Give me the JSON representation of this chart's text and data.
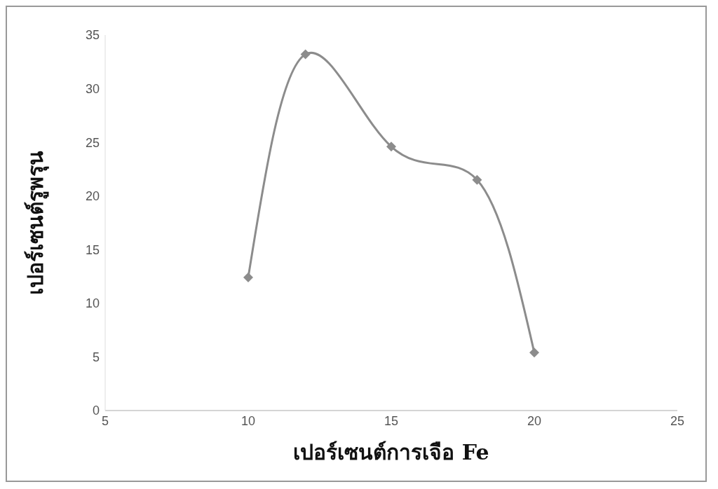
{
  "chart_data": {
    "type": "line",
    "xlabel": "เปอร์เซนต์การเจือ Fe",
    "ylabel": "เปอร์เซนต์รูพรุน",
    "x": [
      10,
      12,
      15,
      18,
      20
    ],
    "series": [
      {
        "color": "#8c8c8c",
        "values": [
          12.4,
          33.2,
          24.6,
          21.5,
          5.4
        ]
      }
    ],
    "xlim": [
      5,
      25
    ],
    "xticks": [
      5,
      10,
      15,
      20,
      25
    ],
    "ylim": [
      0,
      35
    ],
    "yticks": [
      0,
      5,
      10,
      15,
      20,
      25,
      30,
      35
    ],
    "grid": false,
    "legend": false,
    "marker": "diamond",
    "line_style": "solid"
  }
}
